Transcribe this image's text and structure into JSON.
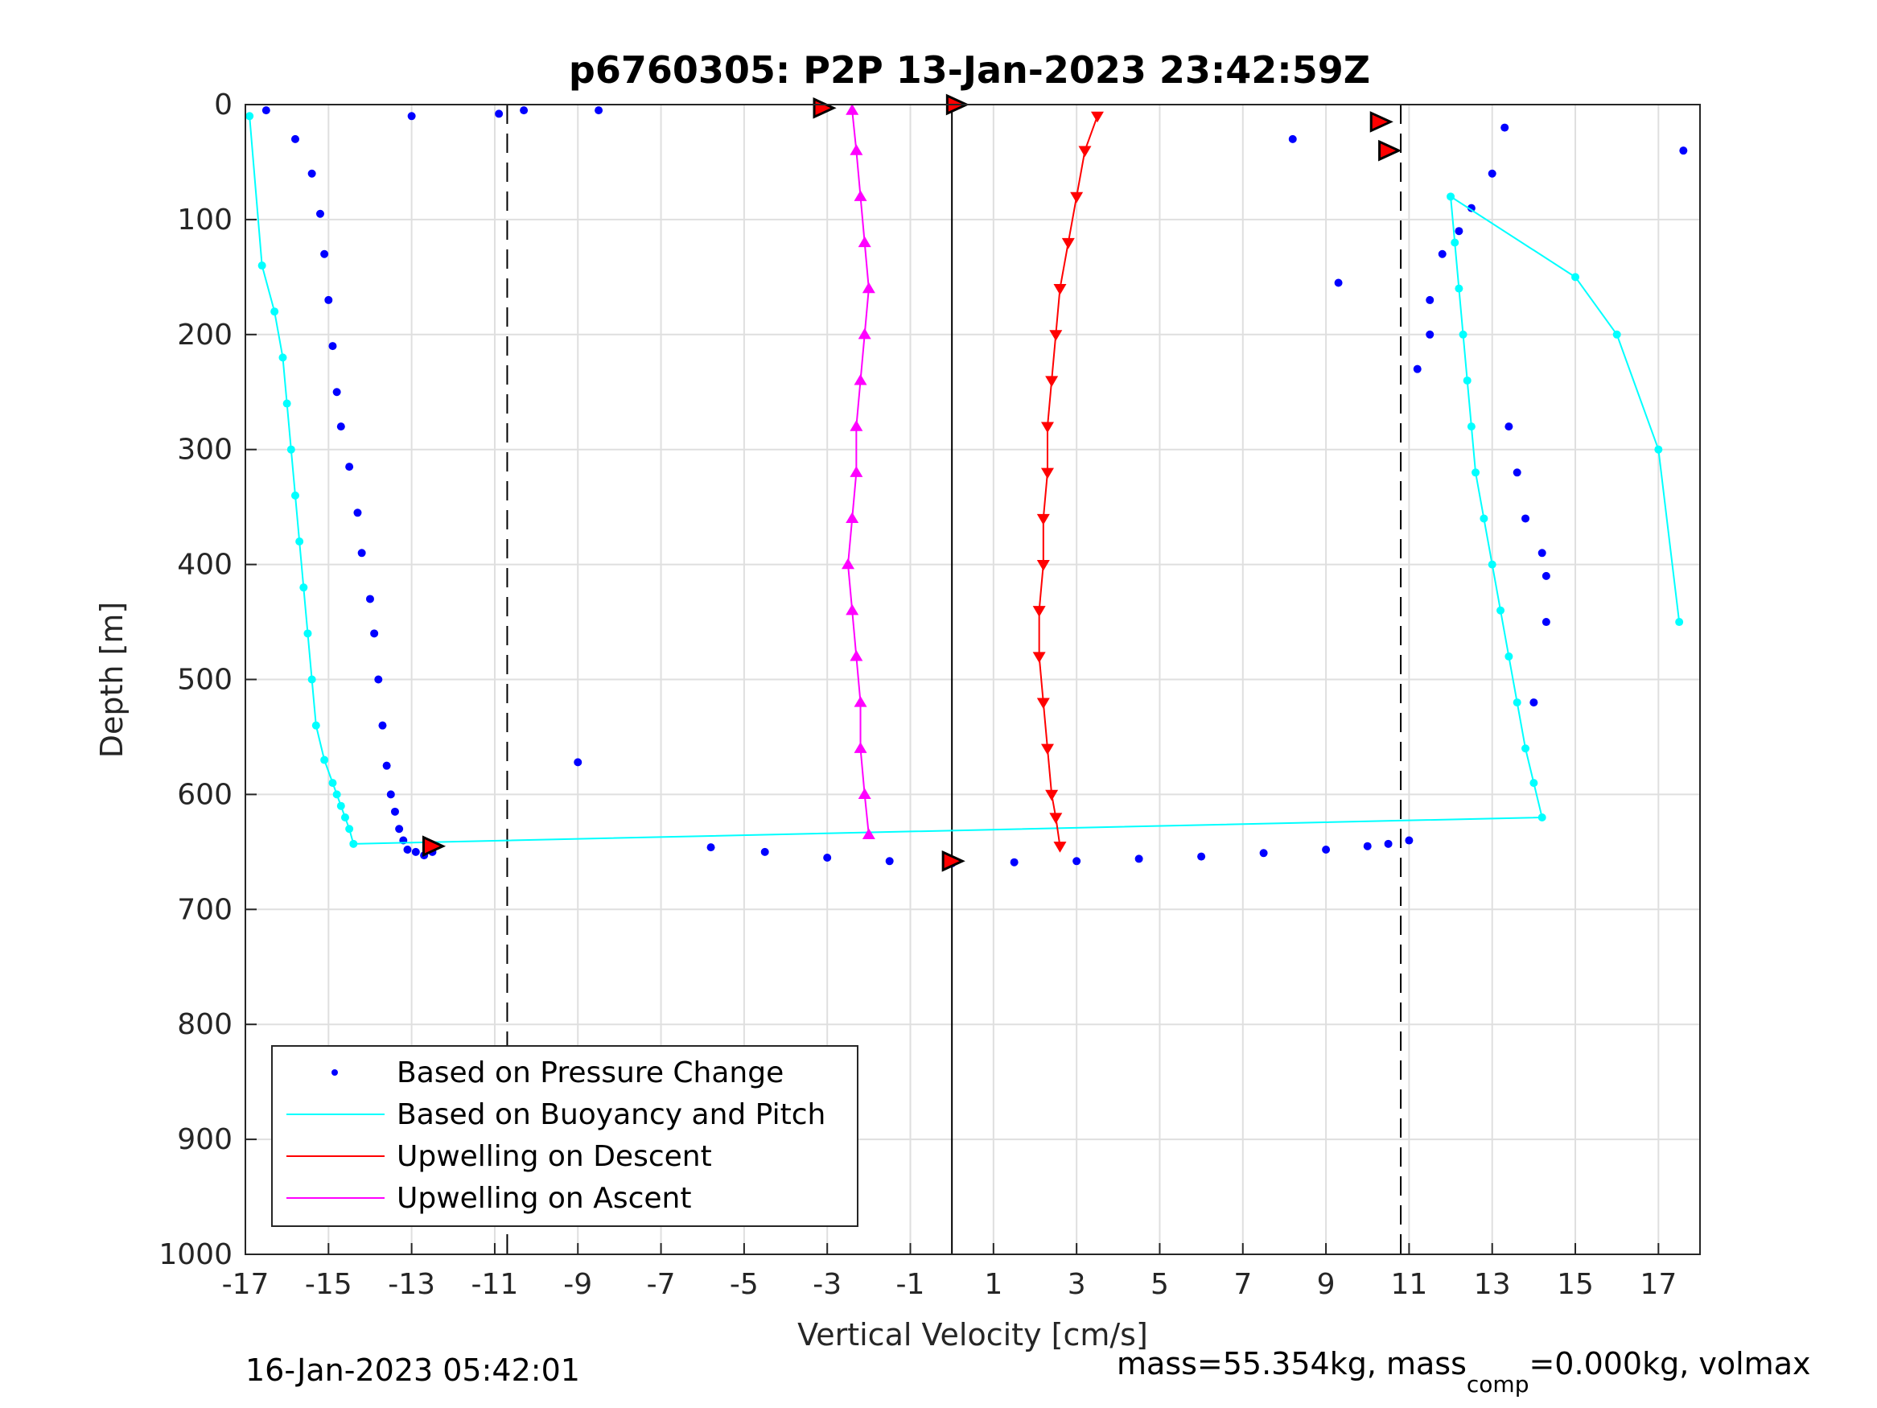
{
  "chart_data": {
    "type": "scatter",
    "title": "p6760305: P2P 13-Jan-2023 23:42:59Z",
    "xlabel": "Vertical Velocity [cm/s]",
    "ylabel": "Depth [m]",
    "xlim": [
      -17,
      18
    ],
    "ylim": [
      0,
      1000
    ],
    "y_reversed": true,
    "grid": true,
    "xticks": [
      "-17",
      "-15",
      "-13",
      "-11",
      "-9",
      "-7",
      "-5",
      "-3",
      "-1",
      "1",
      "3",
      "5",
      "7",
      "9",
      "11",
      "13",
      "15",
      "17"
    ],
    "yticks": [
      "0",
      "100",
      "200",
      "300",
      "400",
      "500",
      "600",
      "700",
      "800",
      "900",
      "1000"
    ],
    "legend_position": "bottom-left",
    "reference_lines": {
      "dashed_x": [
        -10.7,
        10.8
      ],
      "solid_x": [
        0
      ]
    },
    "series": [
      {
        "name": "Based on Pressure Change",
        "color": "#0000ff",
        "style": "dots",
        "x": [
          -16.5,
          -15.8,
          -15.4,
          -15.2,
          -15.1,
          -15.0,
          -14.9,
          -14.8,
          -14.7,
          -14.5,
          -14.3,
          -14.2,
          -14.0,
          -13.9,
          -13.8,
          -13.7,
          -13.6,
          -13.5,
          -13.4,
          -13.3,
          -13.2,
          -13.1,
          -12.9,
          -12.7,
          -12.5,
          -5.8,
          -4.5,
          -3.0,
          -1.5,
          0,
          1.5,
          3.0,
          4.5,
          6.0,
          7.5,
          9.0,
          10.0,
          10.5,
          11.0,
          11.2,
          11.5,
          11.5,
          11.8,
          12.2,
          12.5,
          13.0,
          13.3,
          13.4,
          13.6,
          13.8,
          14.2,
          14.3,
          14.3,
          14.0,
          -13.0,
          -9.0,
          -8.5,
          -10.3,
          -10.9,
          9.3,
          8.2,
          17.6
        ],
        "y": [
          5,
          30,
          60,
          95,
          130,
          170,
          210,
          250,
          280,
          315,
          355,
          390,
          430,
          460,
          500,
          540,
          575,
          600,
          615,
          630,
          640,
          648,
          650,
          653,
          650,
          646,
          650,
          655,
          658,
          660,
          659,
          658,
          656,
          654,
          651,
          648,
          645,
          643,
          640,
          230,
          200,
          170,
          130,
          110,
          90,
          60,
          20,
          280,
          320,
          360,
          390,
          410,
          450,
          520,
          10,
          572,
          5,
          5,
          8,
          155,
          30,
          40
        ]
      },
      {
        "name": "Based on Buoyancy and Pitch",
        "color": "#00ffff",
        "style": "line-dots",
        "x": [
          -16.9,
          -16.6,
          -16.3,
          -16.1,
          -16.0,
          -15.9,
          -15.8,
          -15.7,
          -15.6,
          -15.5,
          -15.4,
          -15.3,
          -15.1,
          -14.9,
          -14.8,
          -14.7,
          -14.6,
          -14.5,
          -14.4,
          14.2,
          14.0,
          13.8,
          13.6,
          13.4,
          13.2,
          13.0,
          12.8,
          12.6,
          12.5,
          12.4,
          12.3,
          12.2,
          12.1,
          12.0,
          15.0,
          16.0,
          17.0,
          17.5
        ],
        "y": [
          10,
          140,
          180,
          220,
          260,
          300,
          340,
          380,
          420,
          460,
          500,
          540,
          570,
          590,
          600,
          610,
          620,
          630,
          643,
          620,
          590,
          560,
          520,
          480,
          440,
          400,
          360,
          320,
          280,
          240,
          200,
          160,
          120,
          80,
          150,
          200,
          300,
          450
        ]
      },
      {
        "name": "Upwelling on Descent",
        "color": "#ff0000",
        "style": "line-triangle-down",
        "x": [
          3.5,
          3.2,
          3.0,
          2.8,
          2.6,
          2.5,
          2.4,
          2.3,
          2.3,
          2.2,
          2.2,
          2.1,
          2.1,
          2.2,
          2.3,
          2.4,
          2.5,
          2.6
        ],
        "y": [
          10,
          40,
          80,
          120,
          160,
          200,
          240,
          280,
          320,
          360,
          400,
          440,
          480,
          520,
          560,
          600,
          620,
          645
        ]
      },
      {
        "name": "Upwelling on Ascent",
        "color": "#ff00ff",
        "style": "line-triangle-up",
        "x": [
          -2.4,
          -2.3,
          -2.2,
          -2.1,
          -2.0,
          -2.1,
          -2.2,
          -2.3,
          -2.3,
          -2.4,
          -2.5,
          -2.4,
          -2.3,
          -2.2,
          -2.2,
          -2.1,
          -2.0
        ],
        "y": [
          5,
          40,
          80,
          120,
          160,
          200,
          240,
          280,
          320,
          360,
          400,
          440,
          480,
          520,
          560,
          600,
          635
        ]
      }
    ],
    "annotations": [
      {
        "type": "red-filled-triangle",
        "x": -3.1,
        "y": 3
      },
      {
        "type": "red-filled-triangle",
        "x": 0.1,
        "y": 0
      },
      {
        "type": "red-filled-triangle",
        "x": 10.3,
        "y": 15
      },
      {
        "type": "red-filled-triangle",
        "x": 10.5,
        "y": 40
      },
      {
        "type": "red-filled-triangle",
        "x": -12.5,
        "y": 645
      },
      {
        "type": "red-filled-triangle",
        "x": 0,
        "y": 658
      }
    ],
    "footer_left": "16-Jan-2023 05:42:01",
    "footer_right_prefix": "mass=55.354kg, mass",
    "footer_right_sub": "comp",
    "footer_right_suffix": "=0.000kg, volmax"
  }
}
